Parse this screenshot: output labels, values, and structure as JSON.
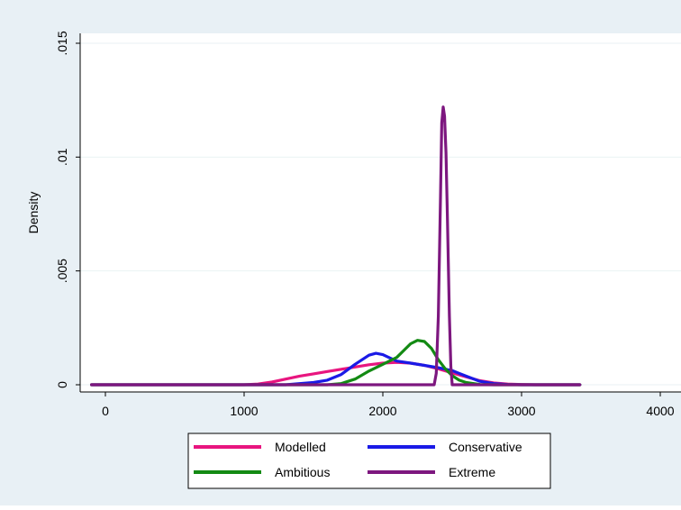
{
  "chart_data": {
    "type": "line",
    "title": "",
    "xlabel": "",
    "ylabel": "Density",
    "xlim": [
      -100,
      4050
    ],
    "ylim": [
      0,
      0.0152
    ],
    "x_ticks": [
      0,
      1000,
      2000,
      3000,
      4000
    ],
    "x_tick_labels": [
      "0",
      "1000",
      "2000",
      "3000",
      "4000"
    ],
    "y_ticks": [
      0,
      0.005,
      0.01,
      0.015
    ],
    "y_tick_labels": [
      "0",
      ".005",
      ".01",
      ".015"
    ],
    "grid": true,
    "legend_position": "bottom",
    "colors": {
      "outer_background": "#e8f0f5",
      "plot_background": "#ffffff",
      "grid": "#eaf2f3"
    },
    "series": [
      {
        "name": "Modelled",
        "color": "#e8157f",
        "x": [
          -100,
          1000,
          1100,
          1200,
          1300,
          1400,
          1500,
          1600,
          1700,
          1800,
          1900,
          2000,
          2100,
          2200,
          2300,
          2400,
          2500,
          2600,
          2700,
          2800,
          2900,
          3000,
          3100,
          3200,
          3300,
          3420
        ],
        "y": [
          0,
          0,
          3e-05,
          0.00012,
          0.00025,
          0.00038,
          0.00048,
          0.00058,
          0.00068,
          0.00078,
          0.00088,
          0.00095,
          0.00098,
          0.00095,
          0.00085,
          0.0007,
          0.00052,
          0.00035,
          0.00018,
          8e-05,
          3e-05,
          1e-05,
          0,
          0,
          0,
          0
        ]
      },
      {
        "name": "Conservative",
        "color": "#1a1ae6",
        "x": [
          -100,
          1300,
          1400,
          1500,
          1600,
          1700,
          1800,
          1900,
          1950,
          2000,
          2050,
          2100,
          2200,
          2300,
          2400,
          2500,
          2600,
          2700,
          2800,
          2900,
          3000,
          3420
        ],
        "y": [
          0,
          0,
          5e-05,
          0.0001,
          0.0002,
          0.00045,
          0.0009,
          0.0013,
          0.00138,
          0.00132,
          0.00118,
          0.00104,
          0.00095,
          0.00085,
          0.00075,
          0.00062,
          0.00038,
          0.00015,
          5e-05,
          1e-05,
          0,
          0
        ]
      },
      {
        "name": "Ambitious",
        "color": "#138a13",
        "x": [
          -100,
          1600,
          1700,
          1800,
          1900,
          2000,
          2100,
          2150,
          2200,
          2250,
          2300,
          2350,
          2400,
          2450,
          2500,
          2550,
          2600,
          2700,
          2800,
          3420
        ],
        "y": [
          0,
          0,
          5e-05,
          0.00025,
          0.0006,
          0.0009,
          0.0012,
          0.0015,
          0.0018,
          0.00195,
          0.0019,
          0.0016,
          0.0011,
          0.0007,
          0.0004,
          0.0002,
          0.0001,
          1e-05,
          0,
          0
        ]
      },
      {
        "name": "Extreme",
        "color": "#7d177f",
        "x": [
          -100,
          2370,
          2385,
          2400,
          2415,
          2425,
          2435,
          2445,
          2455,
          2465,
          2480,
          2490,
          2500,
          3420
        ],
        "y": [
          0,
          0,
          0.0005,
          0.003,
          0.008,
          0.0115,
          0.0122,
          0.0118,
          0.0102,
          0.0075,
          0.003,
          0.0008,
          0,
          0
        ]
      }
    ]
  }
}
